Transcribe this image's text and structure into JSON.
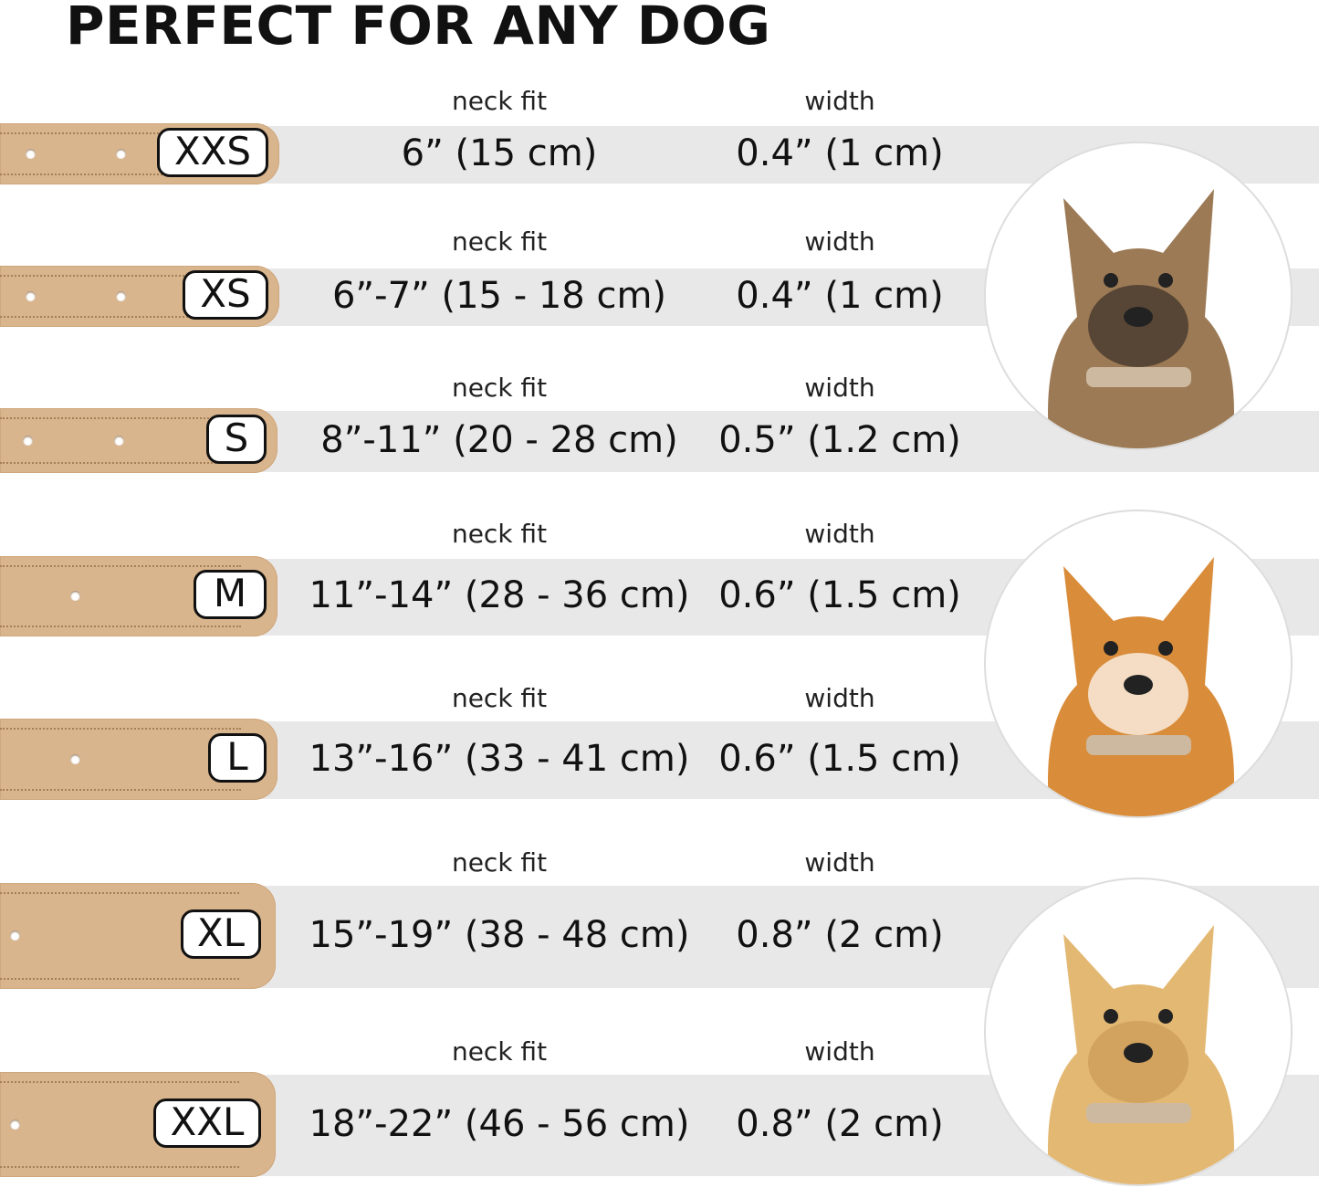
{
  "title": "PERFECT FOR ANY DOG",
  "colors": {
    "collar": "#d9b58d",
    "band": "#e8e8e8",
    "text": "#111111"
  },
  "column_labels": {
    "neck_fit": "neck fit",
    "width": "width"
  },
  "sizes": [
    {
      "size": "XXS",
      "neck_fit": "6” (15 cm)",
      "width": "0.4” (1 cm)"
    },
    {
      "size": "XS",
      "neck_fit": "6”-7” (15 - 18 cm)",
      "width": "0.4” (1 cm)"
    },
    {
      "size": "S",
      "neck_fit": "8”-11” (20 - 28 cm)",
      "width": "0.5” (1.2 cm)"
    },
    {
      "size": "M",
      "neck_fit": "11”-14” (28 - 36 cm)",
      "width": "0.6” (1.5 cm)"
    },
    {
      "size": "L",
      "neck_fit": "13”-16” (33 - 41 cm)",
      "width": "0.6” (1.5 cm)"
    },
    {
      "size": "XL",
      "neck_fit": "15”-19” (38 - 48 cm)",
      "width": "0.8” (2 cm)"
    },
    {
      "size": "XXL",
      "neck_fit": "18”-22” (46 - 56 cm)",
      "width": "0.8” (2 cm)"
    }
  ],
  "dog_photos": [
    {
      "icon": "terrier-dog-photo",
      "fur": "#9c7a55",
      "dark": "#3b3028"
    },
    {
      "icon": "corgi-dog-photo",
      "fur": "#d98c3a",
      "dark": "#ffffff"
    },
    {
      "icon": "labrador-dog-photo",
      "fur": "#e3b873",
      "dark": "#c99a55"
    }
  ]
}
